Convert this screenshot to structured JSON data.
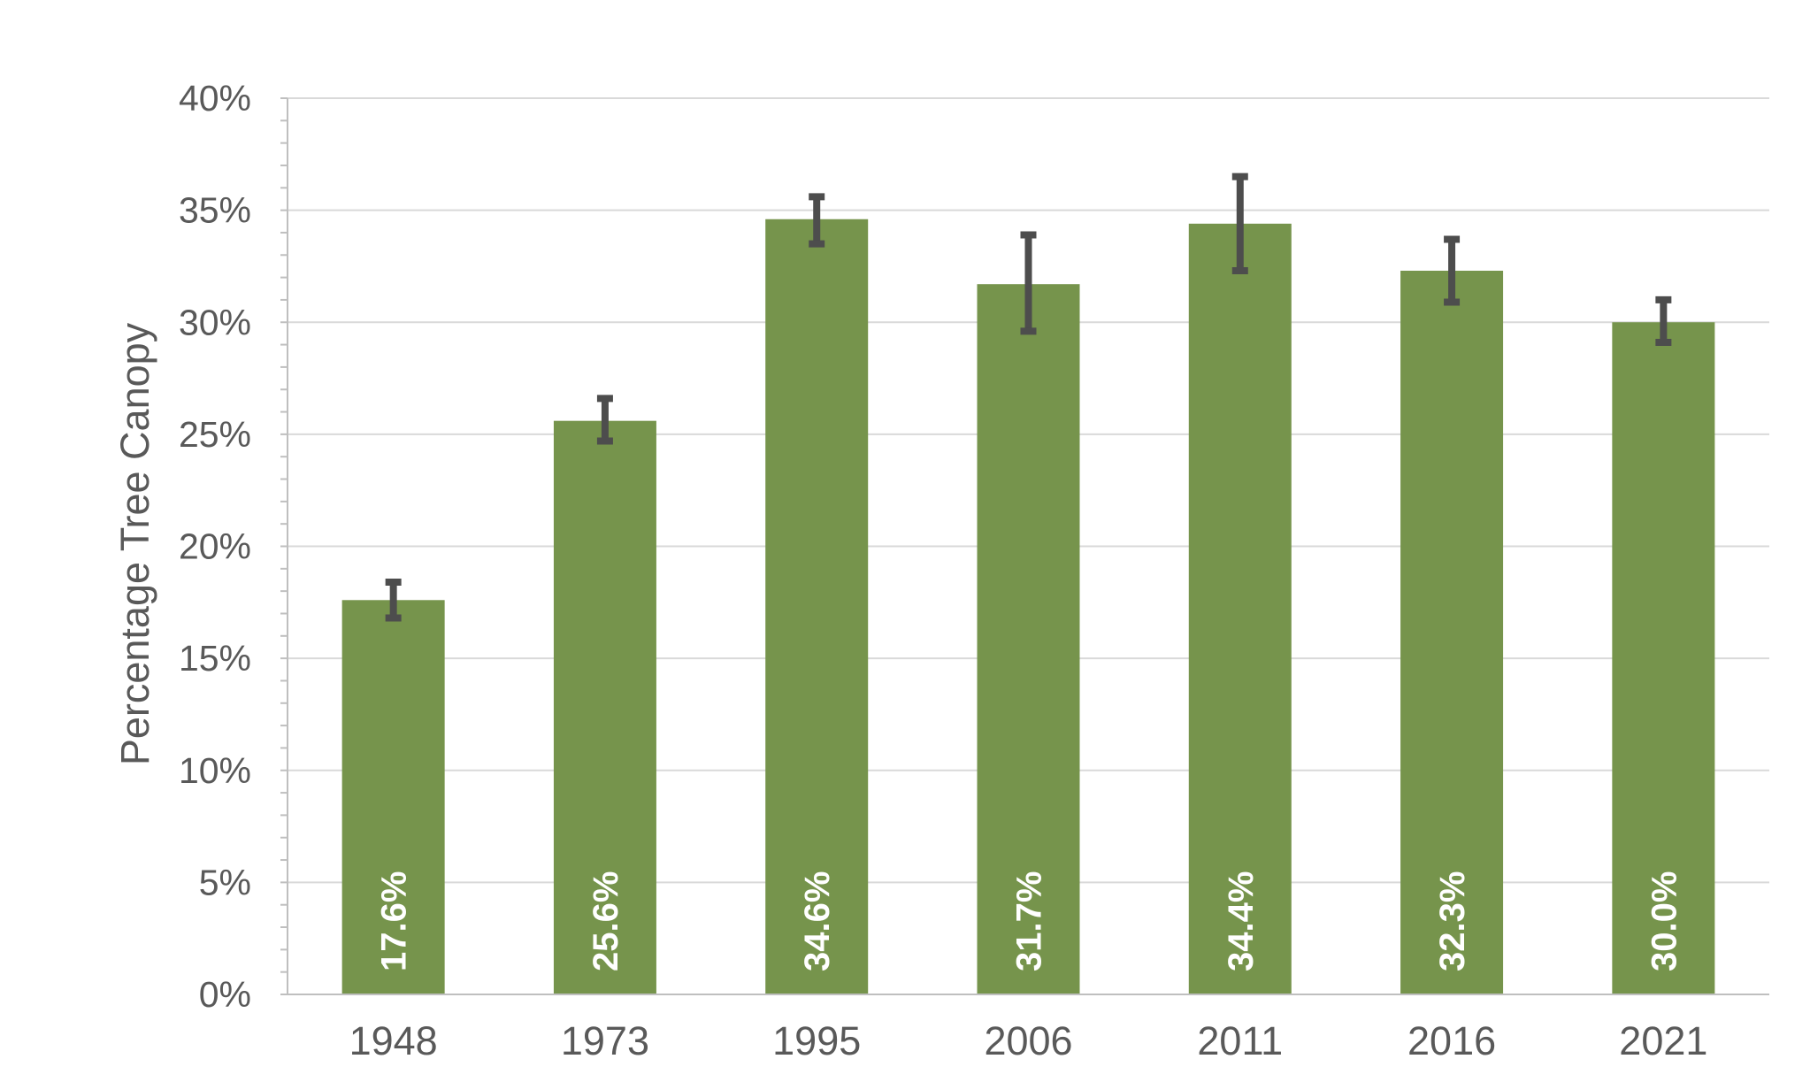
{
  "chart_data": {
    "type": "bar",
    "title": "",
    "xlabel": "",
    "ylabel": "Percentage Tree Canopy",
    "categories": [
      "1948",
      "1973",
      "1995",
      "2006",
      "2011",
      "2016",
      "2021"
    ],
    "values": [
      17.6,
      25.6,
      34.6,
      31.7,
      34.4,
      32.3,
      30.0
    ],
    "value_labels": [
      "17.6%",
      "25.6%",
      "34.6%",
      "31.7%",
      "34.4%",
      "32.3%",
      "30.0%"
    ],
    "error_low": [
      16.8,
      24.7,
      33.5,
      29.6,
      32.3,
      30.9,
      29.1
    ],
    "error_high": [
      18.4,
      26.6,
      35.6,
      33.9,
      36.5,
      33.7,
      31.0
    ],
    "ylim": [
      0,
      40
    ],
    "yticks": [
      0,
      5,
      10,
      15,
      20,
      25,
      30,
      35,
      40
    ],
    "ytick_labels": [
      "0%",
      "5%",
      "10%",
      "15%",
      "20%",
      "25%",
      "30%",
      "35%",
      "40%"
    ],
    "grid": true,
    "legend": "none",
    "colors": {
      "bar": "#76944c",
      "error_bar": "#4d4d4d",
      "gridline": "#d9d9d9",
      "axis": "#bfbfbf",
      "text": "#595959"
    }
  }
}
